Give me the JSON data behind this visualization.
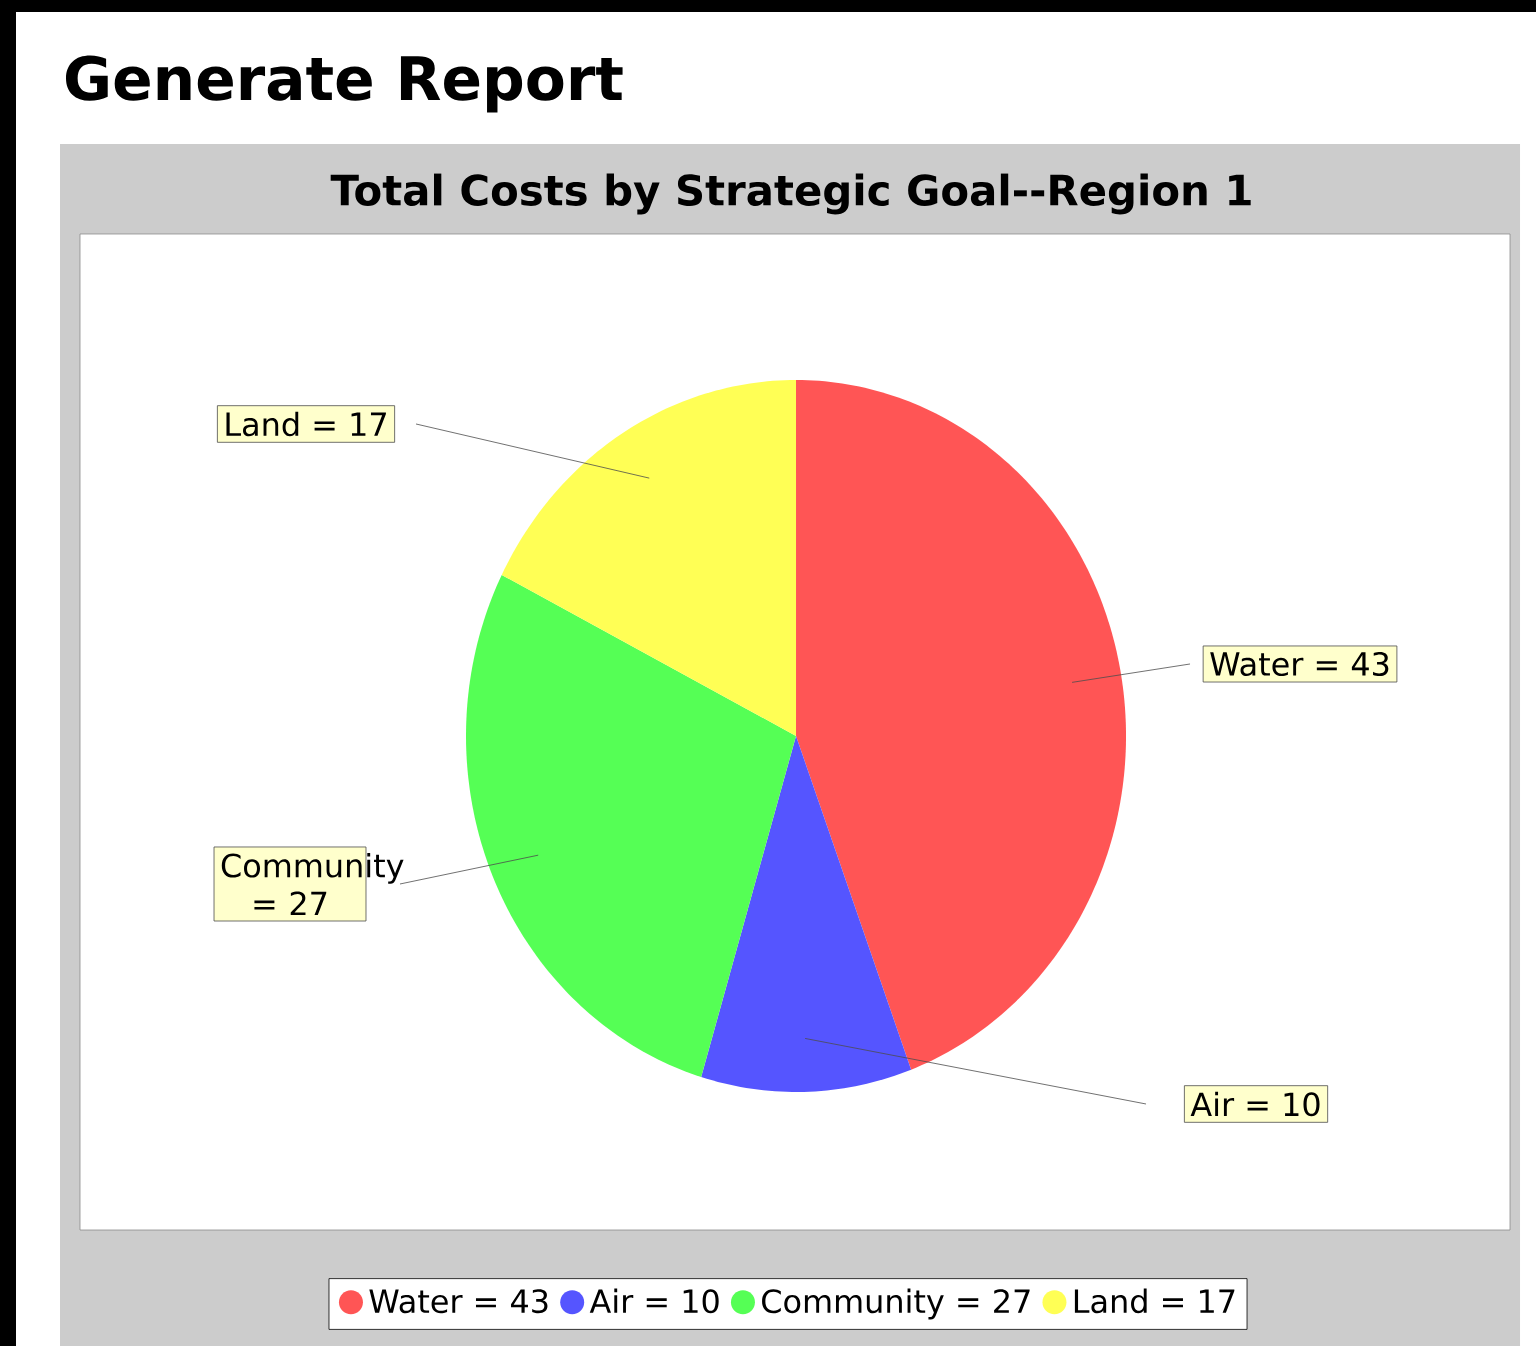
{
  "chart_data": {
    "type": "pie",
    "title": "Generate Report",
    "subtitle": "Total Costs by Strategic Goal--Region 1",
    "categories": [
      "Water = 43",
      "Air = 10",
      "Community = 27",
      "Land = 17"
    ],
    "values": [
      43,
      10,
      27,
      17
    ],
    "colors": [
      "#ff5555",
      "#5555ff",
      "#55ff55",
      "#ffff55"
    ],
    "legend": "bottom"
  }
}
